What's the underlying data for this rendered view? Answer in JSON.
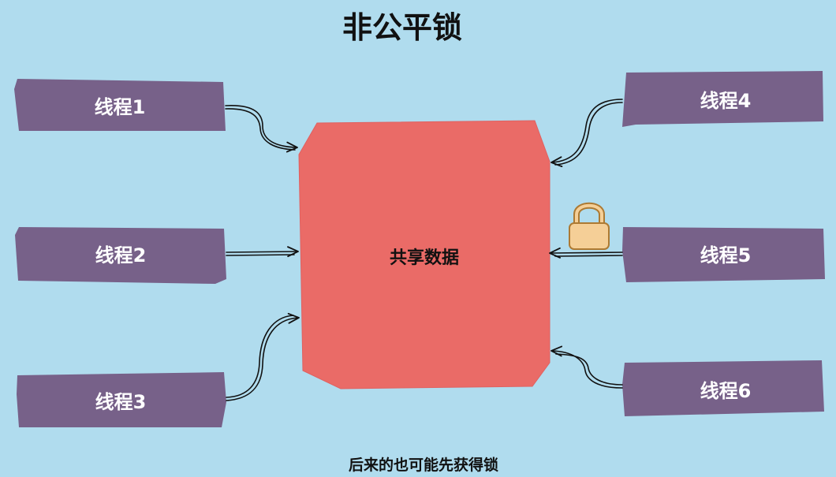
{
  "title": "非公平锁",
  "shared_data": {
    "label": "共享数据",
    "color": "#ea6b67"
  },
  "threads": [
    {
      "label": "线程1"
    },
    {
      "label": "线程2"
    },
    {
      "label": "线程3"
    },
    {
      "label": "线程4"
    },
    {
      "label": "线程5"
    },
    {
      "label": "线程6"
    }
  ],
  "lock_icon": "padlock-icon",
  "caption": "后来的也可能先获得锁",
  "colors": {
    "background": "#b0dcee",
    "thread_box": "#776189",
    "shared_box": "#ea6b67",
    "lock_body": "#f5cf97"
  }
}
